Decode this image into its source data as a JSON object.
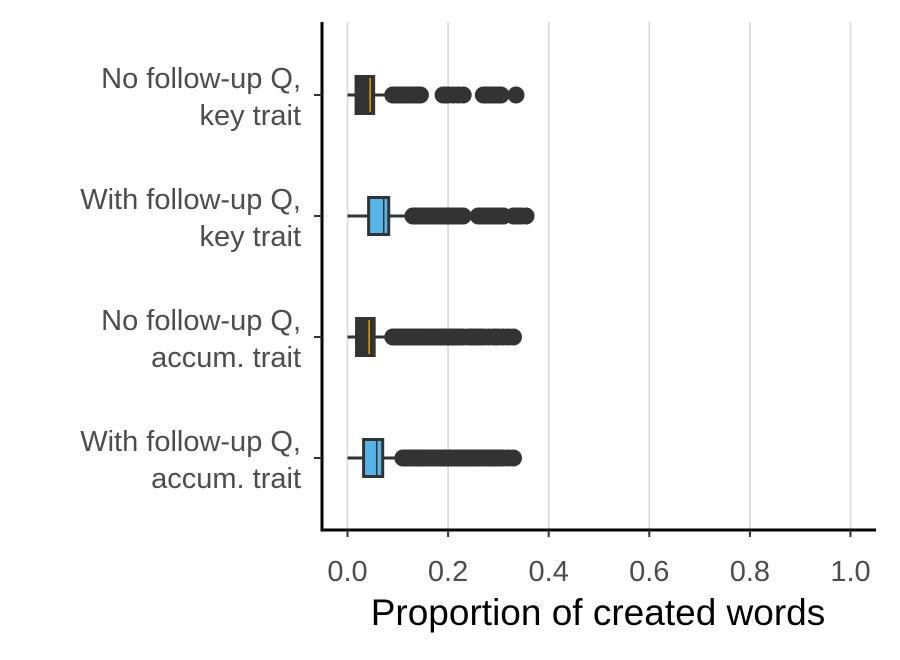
{
  "chart_data": {
    "type": "boxplot",
    "orientation": "horizontal",
    "title": "",
    "xlabel": "Proportion of created words",
    "ylabel": "",
    "xlim": [
      -0.05,
      1.05
    ],
    "x_ticks": [
      0.0,
      0.2,
      0.4,
      0.6,
      0.8,
      1.0
    ],
    "x_tick_labels": [
      "0.0",
      "0.2",
      "0.4",
      "0.6",
      "0.8",
      "1.0"
    ],
    "grid": "vertical major gridlines",
    "legend": "none",
    "categories": [
      {
        "label_lines": [
          "No follow-up Q,",
          "key trait"
        ],
        "fill": "#333333",
        "median_color": "#E69F00",
        "whisker_low": 0.0,
        "q1": 0.017,
        "median": 0.033,
        "mean": 0.045,
        "q3": 0.052,
        "whisker_high": 0.085,
        "outliers": [
          0.09,
          0.095,
          0.1,
          0.105,
          0.11,
          0.115,
          0.12,
          0.125,
          0.13,
          0.135,
          0.14,
          0.145,
          0.19,
          0.195,
          0.2,
          0.21,
          0.22,
          0.23,
          0.27,
          0.275,
          0.28,
          0.285,
          0.29,
          0.295,
          0.3,
          0.305,
          0.335
        ]
      },
      {
        "label_lines": [
          "With follow-up Q,",
          "key trait"
        ],
        "fill": "#56B4E9",
        "median_color": "#56B4E9",
        "whisker_low": 0.0,
        "q1": 0.042,
        "median": 0.055,
        "mean": 0.072,
        "q3": 0.082,
        "whisker_high": 0.125,
        "outliers": [
          0.13,
          0.135,
          0.14,
          0.145,
          0.15,
          0.155,
          0.16,
          0.165,
          0.17,
          0.175,
          0.18,
          0.185,
          0.19,
          0.195,
          0.2,
          0.205,
          0.21,
          0.215,
          0.22,
          0.225,
          0.23,
          0.26,
          0.265,
          0.27,
          0.275,
          0.28,
          0.285,
          0.29,
          0.295,
          0.3,
          0.305,
          0.31,
          0.33,
          0.335,
          0.34,
          0.345,
          0.355
        ]
      },
      {
        "label_lines": [
          "No follow-up Q,",
          "accum. trait"
        ],
        "fill": "#333333",
        "median_color": "#E69F00",
        "whisker_low": 0.0,
        "q1": 0.018,
        "median": 0.033,
        "mean": 0.043,
        "q3": 0.053,
        "whisker_high": 0.085,
        "outliers": [
          0.09,
          0.095,
          0.1,
          0.105,
          0.11,
          0.115,
          0.12,
          0.125,
          0.13,
          0.135,
          0.14,
          0.145,
          0.15,
          0.155,
          0.16,
          0.165,
          0.17,
          0.175,
          0.18,
          0.185,
          0.19,
          0.195,
          0.2,
          0.205,
          0.21,
          0.215,
          0.22,
          0.225,
          0.23,
          0.24,
          0.245,
          0.25,
          0.255,
          0.26,
          0.265,
          0.27,
          0.28,
          0.29,
          0.295,
          0.3,
          0.31,
          0.32,
          0.33
        ]
      },
      {
        "label_lines": [
          "With follow-up Q,",
          "accum. trait"
        ],
        "fill": "#56B4E9",
        "median_color": "#56B4E9",
        "whisker_low": 0.0,
        "q1": 0.032,
        "median": 0.045,
        "mean": 0.058,
        "q3": 0.07,
        "whisker_high": 0.1,
        "outliers": [
          0.11,
          0.115,
          0.12,
          0.125,
          0.13,
          0.135,
          0.14,
          0.145,
          0.15,
          0.155,
          0.16,
          0.165,
          0.17,
          0.175,
          0.18,
          0.185,
          0.19,
          0.195,
          0.2,
          0.205,
          0.21,
          0.215,
          0.22,
          0.225,
          0.23,
          0.235,
          0.24,
          0.245,
          0.25,
          0.255,
          0.26,
          0.265,
          0.27,
          0.275,
          0.28,
          0.285,
          0.29,
          0.295,
          0.3,
          0.305,
          0.31,
          0.32,
          0.33
        ]
      }
    ],
    "colors": {
      "box_dark": "#333333",
      "box_blue": "#56B4E9",
      "outline": "#333333",
      "gridline": "#d9d9d9",
      "axis": "#000000",
      "text": "#4d4d4d"
    }
  }
}
